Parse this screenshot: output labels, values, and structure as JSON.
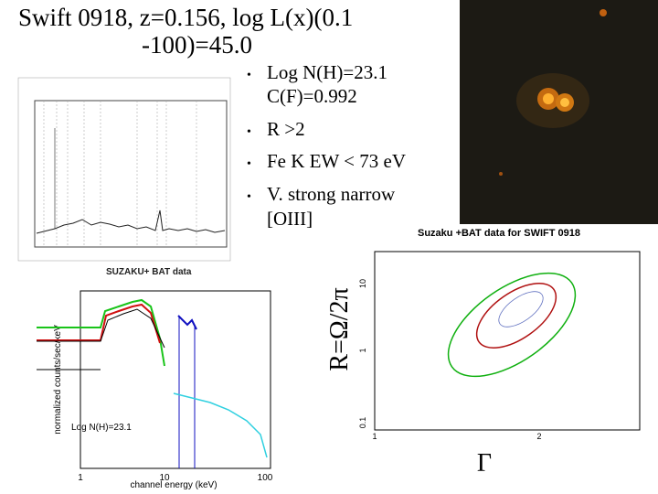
{
  "title": [
    "Swift 0918, z=0.156, log L(x)(0.1",
    "-100)=45.0"
  ],
  "bullets": [
    {
      "lines": [
        "Log N(H)=23.1",
        "C(F)=0.992"
      ]
    },
    {
      "lines": [
        "R >2"
      ]
    },
    {
      "lines": [
        "Fe K EW < 73 eV"
      ]
    },
    {
      "lines": [
        "V. strong narrow",
        "[OIII]"
      ]
    }
  ],
  "optical_spectrum": {
    "caption": "SUZAKU+ BAT data"
  },
  "xray_spectrum": {
    "ylabel": "normalized counts/sec/keV",
    "xlabel": "channel energy (keV)",
    "annotation": "Log N(H)=23.1",
    "xticks": [
      "1",
      "10",
      "100"
    ]
  },
  "contour_plot": {
    "title": "Suzaku +BAT data for SWIFT 0918",
    "ylabel": "R=Ω/2π",
    "xlabel": "Γ",
    "yticks": [
      "10",
      "1",
      "0.1"
    ],
    "xticks": [
      "1",
      "2"
    ]
  }
}
